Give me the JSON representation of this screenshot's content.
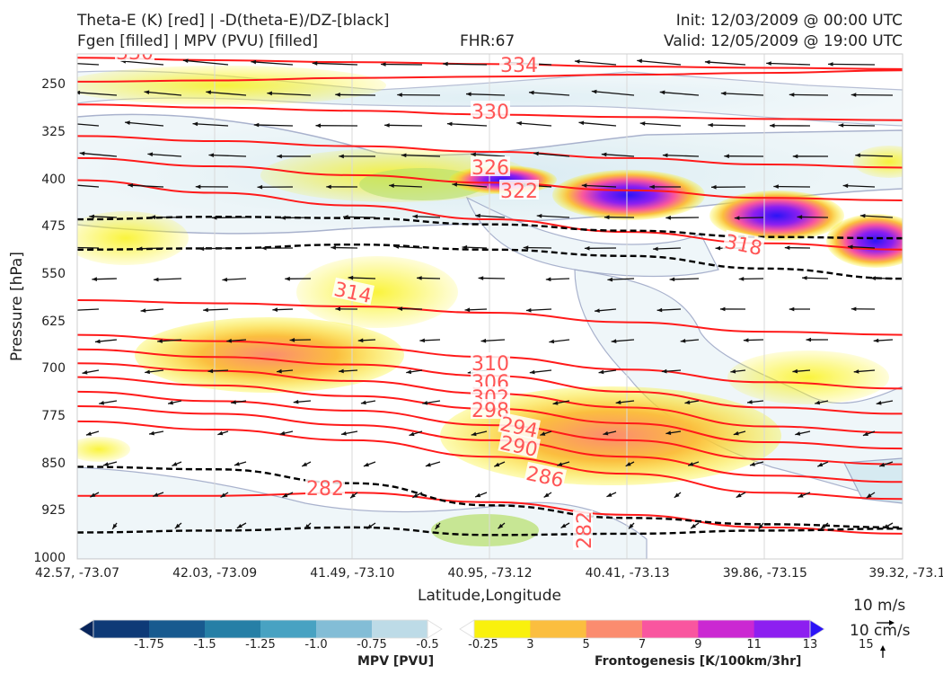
{
  "header": {
    "title_line1": "Theta-E (K) [red] | -D(theta-E)/DZ-[black]",
    "title_line2": "Fgen [filled] | MPV (PVU) [filled]",
    "fhr": "FHR:67",
    "init": "Init: 12/03/2009 @ 00:00 UTC",
    "valid": "Valid: 12/05/2009 @ 19:00 UTC"
  },
  "chart_data": {
    "type": "cross-section",
    "ylabel": "Pressure [hPa]",
    "xlabel": "Latitude,Longitude",
    "ylim": [
      1000,
      200
    ],
    "yticks": [
      250,
      325,
      400,
      475,
      550,
      625,
      700,
      775,
      850,
      925,
      1000
    ],
    "xticks": [
      "42.57, -73.07",
      "42.03, -73.09",
      "41.49, -73.10",
      "40.95, -73.12",
      "40.41, -73.13",
      "39.86, -73.15",
      "39.32, -73.1"
    ],
    "theta_e_contour_labels": [
      "330",
      "334",
      "330",
      "326",
      "322",
      "318",
      "314",
      "310",
      "306",
      "302",
      "298",
      "294",
      "290",
      "286",
      "282",
      "282"
    ],
    "theta_e_contours": [
      {
        "level": 330,
        "pressure": [
          206,
          210,
          213,
          216,
          220,
          222,
          224
        ]
      },
      {
        "level": 334,
        "pressure": [
          244,
          242,
          238,
          236,
          233,
          230,
          226
        ]
      },
      {
        "level": 330,
        "pressure": [
          280,
          285,
          290,
          296,
          300,
          303,
          305
        ]
      },
      {
        "level": 326,
        "pressure": [
          330,
          338,
          346,
          355,
          365,
          375,
          380
        ]
      },
      {
        "level": 322,
        "pressure": [
          365,
          378,
          392,
          404,
          416,
          428,
          432
        ]
      },
      {
        "level": 318,
        "pressure": [
          400,
          420,
          440,
          462,
          482,
          500,
          510
        ]
      },
      {
        "level": 314,
        "pressure": [
          590,
          595,
          600,
          610,
          625,
          640,
          645
        ]
      },
      {
        "level": 310,
        "pressure": [
          645,
          655,
          665,
          680,
          700,
          720,
          730
        ]
      },
      {
        "level": 306,
        "pressure": [
          668,
          680,
          692,
          710,
          735,
          760,
          770
        ]
      },
      {
        "level": 302,
        "pressure": [
          690,
          702,
          718,
          738,
          760,
          790,
          800
        ]
      },
      {
        "level": 298,
        "pressure": [
          712,
          725,
          742,
          762,
          785,
          815,
          825
        ]
      },
      {
        "level": 294,
        "pressure": [
          735,
          750,
          765,
          788,
          812,
          842,
          850
        ]
      },
      {
        "level": 290,
        "pressure": [
          758,
          770,
          788,
          812,
          838,
          868,
          878
        ]
      },
      {
        "level": 286,
        "pressure": [
          782,
          795,
          812,
          838,
          865,
          895,
          905
        ]
      },
      {
        "level": 282,
        "pressure": [
          900,
          900,
          895,
          910,
          930,
          950,
          960
        ]
      }
    ],
    "stability_contours": [
      {
        "pressure": [
          462,
          458,
          460,
          470,
          480,
          490,
          492
        ]
      },
      {
        "pressure": [
          510,
          508,
          502,
          510,
          520,
          540,
          556
        ]
      },
      {
        "pressure": [
          854,
          858,
          880,
          915,
          935,
          945,
          950
        ]
      },
      {
        "pressure": [
          958,
          955,
          950,
          962,
          960,
          955,
          952
        ]
      }
    ],
    "mpv_colorbar": {
      "title": "MPV [PVU]",
      "tick_labels": [
        "-1.75",
        "-1.5",
        "-1.25",
        "-1.0",
        "-0.75",
        "-0.5",
        "-0.25"
      ],
      "colors": [
        "#08255b",
        "#0e3a77",
        "#185a8f",
        "#267fa6",
        "#48a2c2",
        "#83bdd6",
        "#bddbe7",
        "#ffffff"
      ]
    },
    "fgen_colorbar": {
      "title": "Frontogenesis [K/100km/3hr]",
      "tick_labels": [
        "3",
        "5",
        "7",
        "9",
        "11",
        "13",
        "15"
      ],
      "colors": [
        "#ffffff",
        "#f9f10d",
        "#fbbe3f",
        "#fb8c6f",
        "#f9569f",
        "#cb28d2",
        "#8d1ff0",
        "#2c14f6"
      ]
    },
    "vector_key": {
      "horizontal": "10 m/s",
      "vertical": "10 cm/s"
    },
    "colors": {
      "theta_e": "#ff1a1a",
      "theta_e_label": "#ff5555",
      "stability": "#000000",
      "mpv_outline": "#a0aac8"
    }
  }
}
